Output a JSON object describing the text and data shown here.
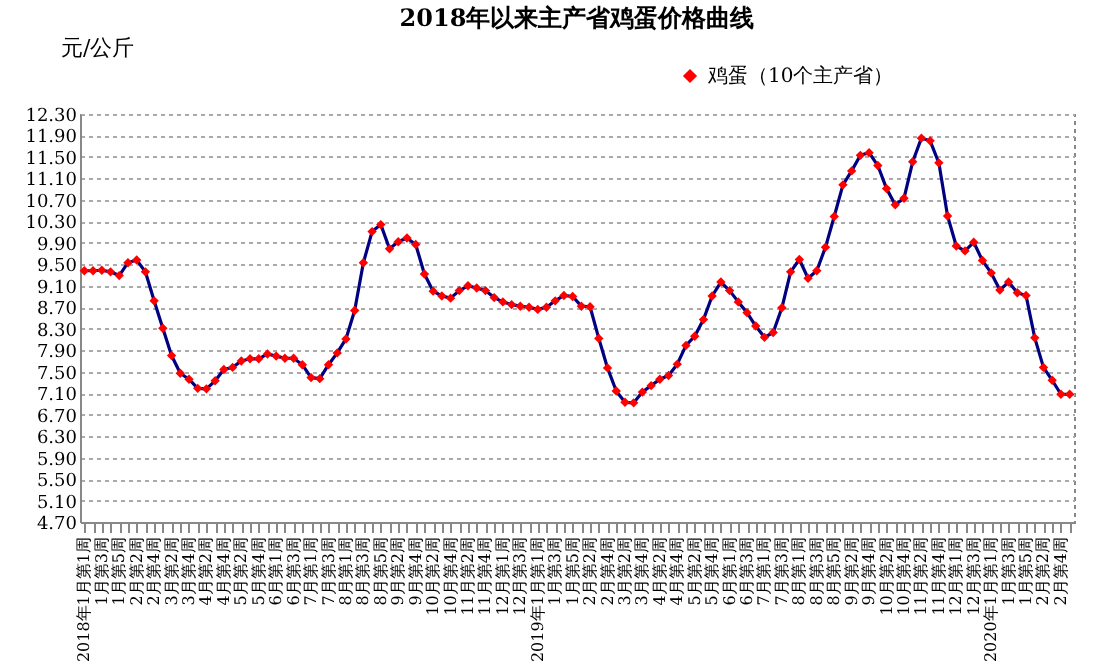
{
  "chart_data": {
    "type": "line",
    "title": "2018年以来主产省鸡蛋价格曲线",
    "ylabel": "元/公斤",
    "categories": [
      "2018年1月第1周",
      null,
      "1月第3周",
      null,
      "1月第5周",
      null,
      "2月第2周",
      null,
      "2月第4周",
      null,
      "3月第2周",
      null,
      "3月第4周",
      null,
      "4月第2周",
      null,
      "4月第4周",
      null,
      "5月第2周",
      null,
      "5月第4周",
      null,
      "6月第1周",
      null,
      "6月第3周",
      null,
      "7月第1周",
      null,
      "7月第3周",
      null,
      "8月第1周",
      null,
      "8月第3周",
      null,
      "8月第5周",
      null,
      "9月第2周",
      null,
      "9月第4周",
      null,
      "10月第2周",
      null,
      "10月第4周",
      null,
      "11月第2周",
      null,
      "11月第4周",
      null,
      "12月第1周",
      null,
      "12月第3周",
      null,
      "2019年1月第1周",
      null,
      "1月第3周",
      null,
      "1月第5周",
      null,
      "2月第2周",
      null,
      "2月第4周",
      null,
      "3月第2周",
      null,
      "3月第4周",
      null,
      "4月第2周",
      null,
      "4月第4周",
      null,
      "5月第2周",
      null,
      "5月第4周",
      null,
      "6月第1周",
      null,
      "6月第3周",
      null,
      "7月第1周",
      null,
      "7月第3周",
      null,
      "8月第1周",
      null,
      "8月第3周",
      null,
      "8月第5周",
      null,
      "9月第2周",
      null,
      "9月第4周",
      null,
      "10月第2周",
      null,
      "10月第4周",
      null,
      "11月第2周",
      null,
      "11月第4周",
      null,
      "12月第1周",
      null,
      "12月第3周",
      null,
      "2020年1月第1周",
      null,
      "1月第3周",
      null,
      "1月第5周",
      null,
      "2月第2周",
      null,
      "2月第4周",
      null
    ],
    "series": [
      {
        "name": "鸡蛋（10个主产省）",
        "color": "#ff0000",
        "values": [
          9.38,
          9.38,
          9.39,
          9.36,
          9.29,
          9.53,
          9.58,
          9.36,
          8.82,
          8.31,
          7.8,
          7.47,
          7.36,
          7.19,
          7.18,
          7.33,
          7.54,
          7.58,
          7.7,
          7.74,
          7.74,
          7.83,
          7.79,
          7.75,
          7.75,
          7.63,
          7.39,
          7.37,
          7.63,
          7.85,
          8.11,
          8.64,
          9.53,
          10.11,
          10.24,
          9.79,
          9.92,
          9.99,
          9.87,
          9.32,
          9.0,
          8.91,
          8.87,
          9.01,
          9.1,
          9.06,
          9.01,
          8.88,
          8.8,
          8.75,
          8.72,
          8.7,
          8.66,
          8.7,
          8.82,
          8.92,
          8.9,
          8.72,
          8.71,
          8.12,
          7.57,
          7.14,
          6.93,
          6.92,
          7.12,
          7.24,
          7.36,
          7.43,
          7.64,
          7.99,
          8.16,
          8.47,
          8.91,
          9.17,
          9.01,
          8.8,
          8.6,
          8.35,
          8.14,
          8.23,
          8.69,
          9.36,
          9.59,
          9.24,
          9.38,
          9.82,
          10.39,
          10.98,
          11.24,
          11.53,
          11.58,
          11.34,
          10.91,
          10.61,
          10.73,
          11.41,
          11.85,
          11.8,
          11.39,
          10.4,
          9.84,
          9.75,
          9.91,
          9.57,
          9.34,
          9.02,
          9.17,
          8.97,
          8.92,
          8.13,
          7.58,
          7.34,
          7.08,
          7.08
        ]
      }
    ],
    "ylim": [
      4.7,
      12.3
    ],
    "yticks": [
      {
        "value": 4.7,
        "label": "4.70"
      },
      {
        "value": 5.1,
        "label": "5.10"
      },
      {
        "value": 5.5,
        "label": "5.50"
      },
      {
        "value": 5.9,
        "label": "5.90"
      },
      {
        "value": 6.3,
        "label": "6.30"
      },
      {
        "value": 6.7,
        "label": "6.70"
      },
      {
        "value": 7.1,
        "label": "7.10"
      },
      {
        "value": 7.5,
        "label": "7.50"
      },
      {
        "value": 7.9,
        "label": "7.90"
      },
      {
        "value": 8.3,
        "label": "8.30"
      },
      {
        "value": 8.7,
        "label": "8.70"
      },
      {
        "value": 9.1,
        "label": "9.10"
      },
      {
        "value": 9.5,
        "label": "9.50"
      },
      {
        "value": 9.9,
        "label": "9.90"
      },
      {
        "value": 10.3,
        "label": "10.30"
      },
      {
        "value": 10.7,
        "label": "10.70"
      },
      {
        "value": 11.1,
        "label": "11.10"
      },
      {
        "value": 11.5,
        "label": "11.50"
      },
      {
        "value": 11.9,
        "label": "11.90"
      },
      {
        "value": 12.3,
        "label": "12.30"
      }
    ],
    "grid": "y",
    "legend": "top right",
    "marker": "diamond",
    "line_style": "solid"
  }
}
